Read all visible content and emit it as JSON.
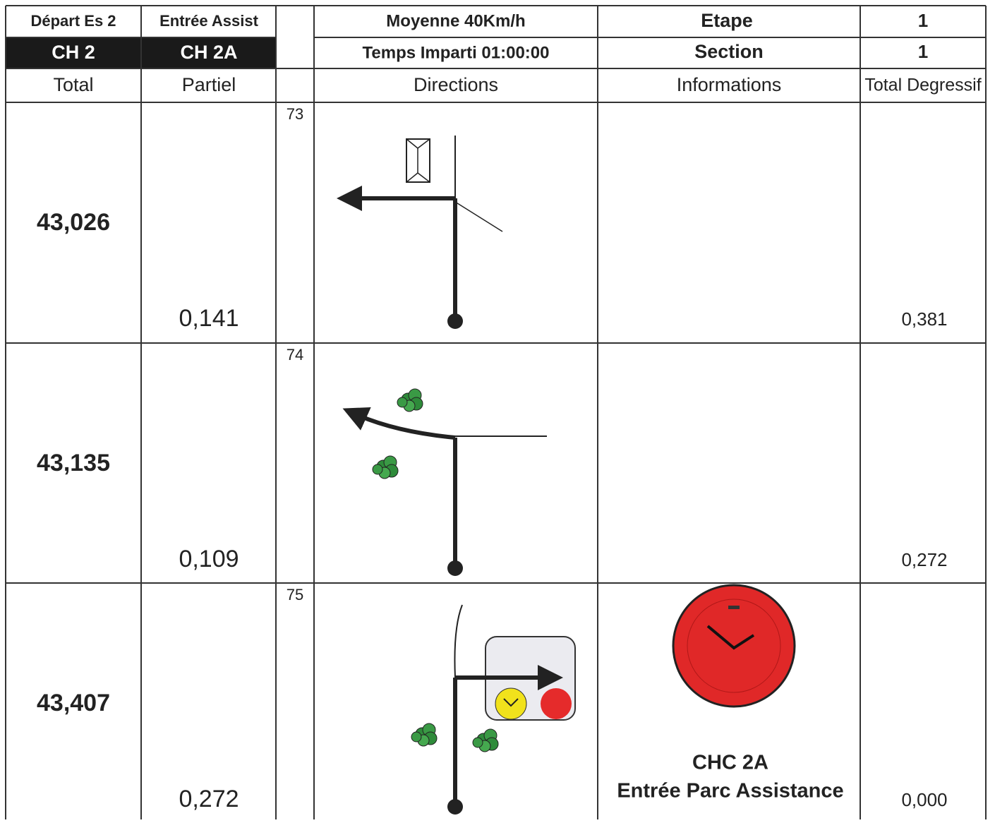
{
  "header": {
    "depart": "Départ Es 2",
    "entree": "Entrée Assist",
    "ch_start": "CH 2",
    "ch_end": "CH 2A",
    "moyenne": "Moyenne 40Km/h",
    "temps": "Temps Imparti 01:00:00",
    "etape_label": "Etape",
    "etape": "1",
    "section_label": "Section",
    "section": "1"
  },
  "columns": [
    "Total",
    "Partiel",
    "Directions",
    "Informations",
    "Total Degressif"
  ],
  "rows": [
    {
      "number": "73",
      "total": "43,026",
      "partial": "0,141",
      "degressif": "0,381"
    },
    {
      "number": "74",
      "total": "43,135",
      "partial": "0,109",
      "degressif": "0,272"
    },
    {
      "number": "75",
      "total": "43,407",
      "partial": "0,272",
      "degressif": "0,000",
      "info": [
        "CHC 2A",
        "Entrée Parc Assistance"
      ]
    }
  ]
}
